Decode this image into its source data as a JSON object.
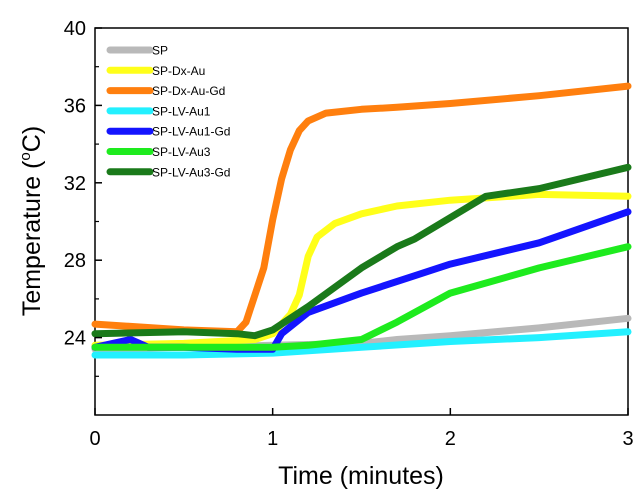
{
  "chart_data": {
    "type": "line",
    "title": "",
    "xlabel": "Time (minutes)",
    "ylabel_main": "Temperature (",
    "ylabel_sup": "o",
    "ylabel_end": "C)",
    "xlim": [
      0,
      3
    ],
    "ylim": [
      20,
      40
    ],
    "xticks": [
      0,
      1,
      2,
      3
    ],
    "yticks": [
      24,
      28,
      32,
      36,
      40
    ],
    "grid": false,
    "legend_position": "top-left",
    "series": [
      {
        "name": "SP",
        "color": "#b9b9b9",
        "x": [
          0,
          0.5,
          1.0,
          1.5,
          1.7,
          2.0,
          2.5,
          3.0
        ],
        "y": [
          23.4,
          23.5,
          23.6,
          23.7,
          23.9,
          24.1,
          24.5,
          25.0
        ]
      },
      {
        "name": "SP-Dx-Au",
        "color": "#ffff1a",
        "x": [
          0,
          0.5,
          0.9,
          1.0,
          1.1,
          1.15,
          1.2,
          1.25,
          1.35,
          1.5,
          1.7,
          2.0,
          2.5,
          3.0
        ],
        "y": [
          23.6,
          23.7,
          23.9,
          24.2,
          25.2,
          26.2,
          28.2,
          29.2,
          29.9,
          30.4,
          30.8,
          31.1,
          31.4,
          31.3
        ]
      },
      {
        "name": "SP-Dx-Au-Gd",
        "color": "#ff7f0e",
        "x": [
          0,
          0.5,
          0.8,
          0.85,
          0.95,
          1.0,
          1.05,
          1.1,
          1.15,
          1.2,
          1.3,
          1.5,
          1.7,
          2.0,
          2.5,
          3.0
        ],
        "y": [
          24.7,
          24.4,
          24.3,
          24.8,
          27.6,
          30.1,
          32.2,
          33.7,
          34.7,
          35.2,
          35.6,
          35.8,
          35.9,
          36.1,
          36.5,
          37.0
        ]
      },
      {
        "name": "SP-LV-Au1",
        "color": "#23f0ff",
        "x": [
          0,
          0.5,
          1.0,
          1.5,
          2.0,
          2.5,
          3.0
        ],
        "y": [
          23.1,
          23.1,
          23.2,
          23.5,
          23.8,
          24.0,
          24.3
        ]
      },
      {
        "name": "SP-LV-Au1-Gd",
        "color": "#1414ff",
        "x": [
          0,
          0.2,
          0.3,
          0.5,
          0.8,
          1.0,
          1.05,
          1.2,
          1.5,
          1.8,
          2.0,
          2.5,
          3.0
        ],
        "y": [
          23.5,
          23.9,
          23.5,
          23.5,
          23.4,
          23.4,
          24.2,
          25.3,
          26.3,
          27.2,
          27.8,
          28.9,
          30.5
        ]
      },
      {
        "name": "SP-LV-Au3",
        "color": "#1eeb1e",
        "x": [
          0,
          0.5,
          1.0,
          1.2,
          1.5,
          1.7,
          2.0,
          2.5,
          3.0
        ],
        "y": [
          23.5,
          23.5,
          23.5,
          23.6,
          23.9,
          24.8,
          26.3,
          27.6,
          28.7
        ]
      },
      {
        "name": "SP-LV-Au3-Gd",
        "color": "#1a7a1a",
        "x": [
          0,
          0.5,
          0.8,
          0.9,
          1.0,
          1.2,
          1.5,
          1.7,
          1.8,
          2.0,
          2.2,
          2.5,
          3.0
        ],
        "y": [
          24.2,
          24.3,
          24.2,
          24.1,
          24.4,
          25.6,
          27.6,
          28.7,
          29.1,
          30.2,
          31.3,
          31.7,
          32.8
        ]
      }
    ]
  }
}
